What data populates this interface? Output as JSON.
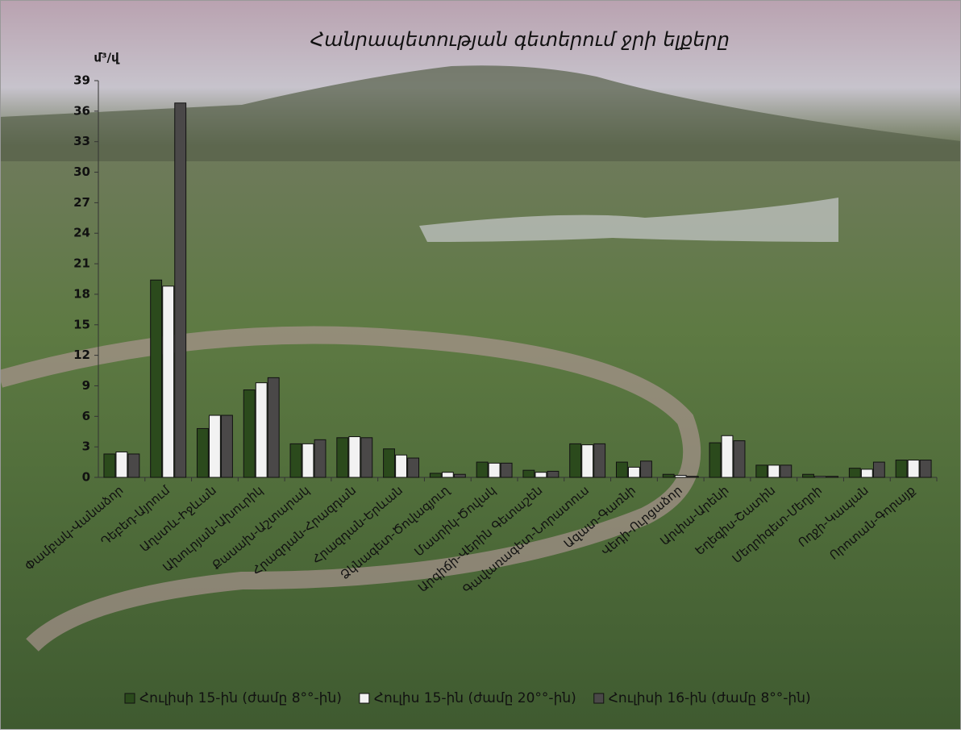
{
  "chart_data": {
    "type": "bar",
    "title": "Հանրապետության գետերում ջրի ելքերը",
    "y_label": "մ³/վ",
    "categories": [
      "Փամբակ-Վանաձոր",
      "Դեբեդ-Այրում",
      "Աղստև-Իջևան",
      "Ախուրյան-Ախուրիկ",
      "Քասախ-Աշտարակ",
      "Հրազդան-Հրազդան",
      "Հրազդան-Երևան",
      "Ձկնագետ-Ծովագյուղ",
      "Մասրիկ-Ծովակ",
      "Արգիճի-Վերին Գետաշեն",
      "Գավառագետ-Նորատուս",
      "Ազատ-Գառնի",
      "Վեդի-Ուրցաձոր",
      "Արփա-Արենի",
      "Եղեգիս-Շատին",
      "Մեղրիգետ-Մեղրի",
      "Ողջի-Կապան",
      "Որոտան-Գորայք"
    ],
    "series": [
      {
        "name": "Հուլիսի 15-ին (ժամը 8°°-ին)",
        "color": "#2b4a1c",
        "values": [
          2.3,
          19.4,
          4.8,
          8.6,
          3.3,
          3.9,
          2.8,
          0.4,
          1.5,
          0.7,
          3.3,
          1.5,
          0.3,
          3.4,
          1.2,
          0.3,
          0.9,
          1.7
        ]
      },
      {
        "name": "Հուլիս 15-ին (ժամը 20°°-ին)",
        "color": "#f2f2f2",
        "values": [
          2.5,
          18.8,
          6.1,
          9.3,
          3.3,
          4.0,
          2.2,
          0.5,
          1.4,
          0.5,
          3.2,
          1.0,
          0.2,
          4.1,
          1.2,
          0.1,
          0.8,
          1.7
        ]
      },
      {
        "name": "Հուլիսի 16-ին (ժամը 8°°-ին)",
        "color": "#4a4848",
        "values": [
          2.3,
          36.8,
          6.1,
          9.8,
          3.7,
          3.9,
          1.9,
          0.3,
          1.4,
          0.6,
          3.3,
          1.6,
          0.1,
          3.6,
          1.2,
          0.1,
          1.5,
          1.7
        ]
      }
    ],
    "ylim": [
      0,
      39
    ],
    "yticks": [
      0,
      3,
      6,
      9,
      12,
      15,
      18,
      21,
      24,
      27,
      30,
      33,
      36,
      39
    ],
    "legend": "bottom"
  }
}
